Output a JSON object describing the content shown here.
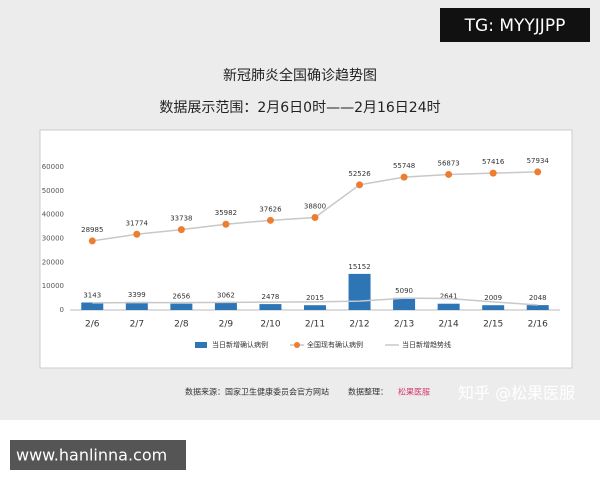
{
  "tag": "TG: MYYJJPP",
  "website": "www.hanlinna.com",
  "footer": {
    "source": "数据来源：国家卫生健康委员会官方网站",
    "organizer": "数据整理：",
    "logo": "松果医服",
    "watermark": "知乎 @松果医服"
  },
  "chart_data": {
    "type": "bar",
    "title": "新冠肺炎全国确诊趋势图",
    "subtitle": "数据展示范围：2月6日0时——2月16日24时",
    "categories": [
      "2/6",
      "2/7",
      "2/8",
      "2/9",
      "2/10",
      "2/11",
      "2/12",
      "2/13",
      "2/14",
      "2/15",
      "2/16"
    ],
    "series": [
      {
        "name": "当日新增确认病例",
        "kind": "bar",
        "color": "#2e75b6",
        "values": [
          3143,
          3399,
          2656,
          3062,
          2478,
          2015,
          15152,
          5090,
          2641,
          2009,
          2048
        ]
      },
      {
        "name": "全国现有确认病例",
        "kind": "line",
        "color": "#ed7d31",
        "values": [
          28985,
          31774,
          33738,
          35982,
          37626,
          38800,
          52526,
          55748,
          56873,
          57416,
          57934
        ]
      },
      {
        "name": "当日新增趋势线",
        "kind": "trend",
        "color": "#c8c8c8",
        "values": [
          3000,
          3100,
          3100,
          3200,
          3300,
          3400,
          3700,
          5000,
          4800,
          3400,
          2100
        ]
      }
    ],
    "ylim": [
      0,
      60000
    ],
    "yticks": [
      0,
      10000,
      20000,
      30000,
      40000,
      50000,
      60000
    ],
    "grid": false,
    "legend": "bottom"
  }
}
